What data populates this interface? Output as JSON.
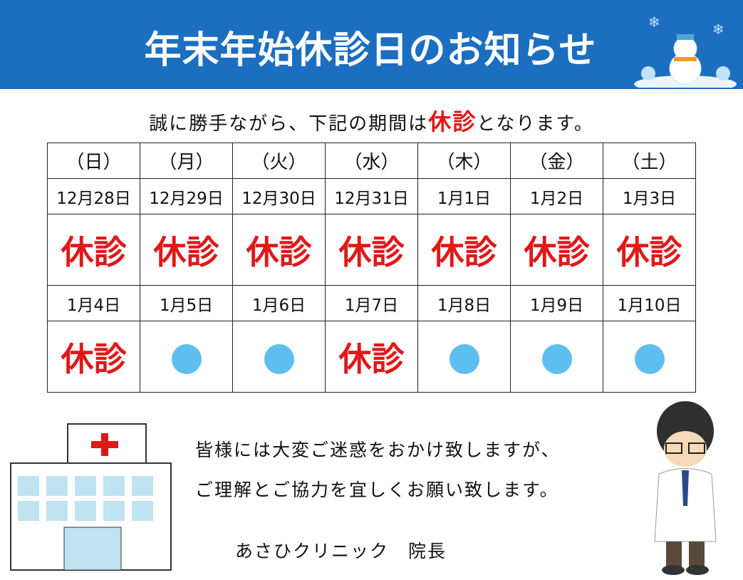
{
  "header": {
    "title": "年末年始休診日のお知らせ"
  },
  "intro": {
    "before": "誠に勝手ながら、下記の期間は",
    "emphasis": "休診",
    "after": "となります。"
  },
  "table": {
    "weekdays": [
      "（日）",
      "（月）",
      "（火）",
      "（水）",
      "（木）",
      "（金）",
      "（土）"
    ],
    "weeks": [
      {
        "dates": [
          "12月28日",
          "12月29日",
          "12月30日",
          "12月31日",
          "1月1日",
          "1月2日",
          "1月3日"
        ],
        "statuses": [
          "休診",
          "休診",
          "休診",
          "休診",
          "休診",
          "休診",
          "休診"
        ]
      },
      {
        "dates": [
          "1月4日",
          "1月5日",
          "1月6日",
          "1月7日",
          "1月8日",
          "1月9日",
          "1月10日"
        ],
        "statuses": [
          "休診",
          null,
          null,
          "休診",
          null,
          null,
          null
        ]
      }
    ]
  },
  "message": {
    "lines": [
      "皆様には大変ご迷惑をおかけ致しますが、",
      "ご理解とご協力を宜しくお願い致します。"
    ]
  },
  "signature": "あさひクリニック　院長"
}
